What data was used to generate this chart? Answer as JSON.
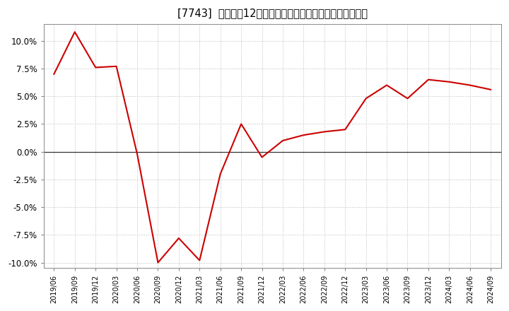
{
  "title": "[7743]  売上高の12か月移動合計の対前年同期増減率の推移",
  "line_color": "#cc0000",
  "background_color": "#ffffff",
  "plot_bg_color": "#ffffff",
  "grid_color": "#bbbbbb",
  "ylim": [
    -0.105,
    0.115
  ],
  "yticks": [
    -0.1,
    -0.075,
    -0.05,
    -0.025,
    0.0,
    0.025,
    0.05,
    0.075,
    0.1
  ],
  "dates": [
    "2019/06",
    "2019/09",
    "2019/12",
    "2020/03",
    "2020/06",
    "2020/09",
    "2020/12",
    "2021/03",
    "2021/06",
    "2021/09",
    "2021/12",
    "2022/03",
    "2022/06",
    "2022/09",
    "2022/12",
    "2023/03",
    "2023/06",
    "2023/09",
    "2023/12",
    "2024/03",
    "2024/06",
    "2024/09"
  ],
  "values": [
    0.07,
    0.108,
    0.076,
    0.077,
    -0.002,
    -0.1,
    -0.078,
    -0.098,
    -0.02,
    0.025,
    -0.005,
    0.01,
    0.015,
    0.018,
    0.02,
    0.048,
    0.06,
    0.048,
    0.065,
    0.063,
    0.06,
    0.056
  ]
}
